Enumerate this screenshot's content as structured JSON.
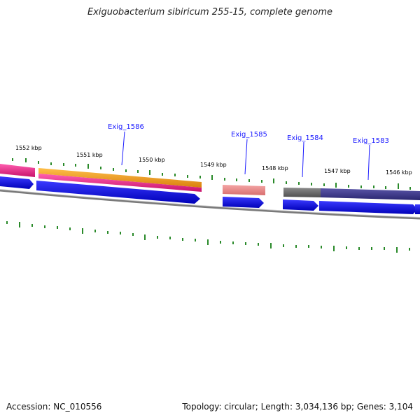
{
  "title": "Exiguobacterium sibiricum 255-15, complete genome",
  "footer": {
    "accession": "Accession: NC_010556",
    "summary": "Topology: circular; Length: 3,034,136 bp; Genes: 3,104"
  },
  "scale_labels": [
    "1552 kbp",
    "1551 kbp",
    "1550 kbp",
    "1549 kbp",
    "1548 kbp",
    "1547 kbp",
    "1546 kbp"
  ],
  "gene_labels": [
    "Exig_1586",
    "Exig_1585",
    "Exig_1584",
    "Exig_1583"
  ],
  "colors": {
    "magenta": "#e8197e",
    "orange": "#f39a1b",
    "salmon": "#e88a8a",
    "gray": "#6b6b6b",
    "navy": "#3a3585",
    "blue": "#1010e0",
    "green_tick": "#2a8a2a",
    "backbone": "#808080"
  }
}
